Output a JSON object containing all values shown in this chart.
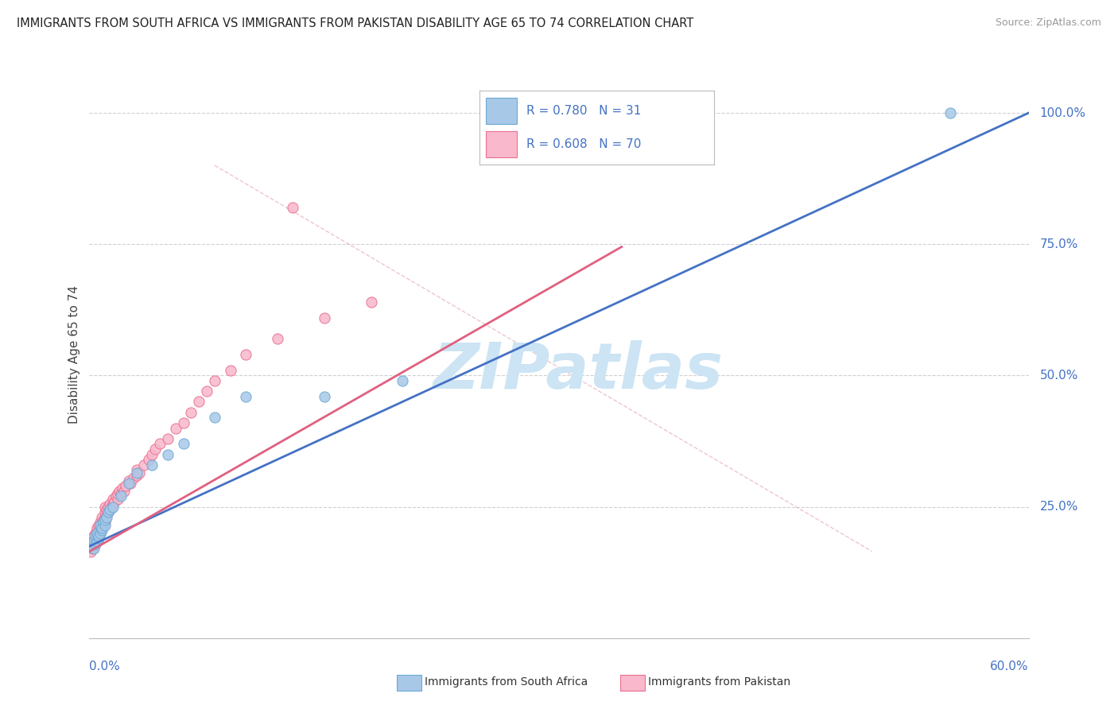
{
  "title": "IMMIGRANTS FROM SOUTH AFRICA VS IMMIGRANTS FROM PAKISTAN DISABILITY AGE 65 TO 74 CORRELATION CHART",
  "source": "Source: ZipAtlas.com",
  "ylabel": "Disability Age 65 to 74",
  "xlim": [
    0.0,
    0.6
  ],
  "ylim": [
    0.0,
    1.08
  ],
  "legend_r1": "R = 0.780",
  "legend_n1": "N = 31",
  "legend_r2": "R = 0.608",
  "legend_n2": "N = 70",
  "color_sa_fill": "#a8c8e8",
  "color_pk_fill": "#f9b8cc",
  "color_sa_edge": "#6aaad4",
  "color_pk_edge": "#e87090",
  "color_sa_line": "#4472c4",
  "color_pk_line": "#e06080",
  "color_text_blue": "#4472c4",
  "watermark_color": "#cce4f4",
  "grid_color": "#d0d0d0",
  "sa_x": [
    0.002,
    0.003,
    0.003,
    0.004,
    0.004,
    0.005,
    0.005,
    0.006,
    0.006,
    0.007,
    0.007,
    0.008,
    0.008,
    0.009,
    0.01,
    0.01,
    0.011,
    0.012,
    0.013,
    0.015,
    0.02,
    0.025,
    0.03,
    0.04,
    0.05,
    0.06,
    0.08,
    0.1,
    0.15,
    0.2,
    0.55
  ],
  "sa_y": [
    0.175,
    0.17,
    0.185,
    0.18,
    0.195,
    0.185,
    0.2,
    0.19,
    0.195,
    0.2,
    0.215,
    0.205,
    0.21,
    0.22,
    0.215,
    0.225,
    0.23,
    0.24,
    0.245,
    0.25,
    0.27,
    0.295,
    0.315,
    0.33,
    0.35,
    0.37,
    0.42,
    0.46,
    0.46,
    0.49,
    1.0
  ],
  "pk_x": [
    0.001,
    0.002,
    0.002,
    0.003,
    0.003,
    0.003,
    0.004,
    0.004,
    0.004,
    0.005,
    0.005,
    0.005,
    0.005,
    0.006,
    0.006,
    0.006,
    0.007,
    0.007,
    0.007,
    0.008,
    0.008,
    0.008,
    0.009,
    0.009,
    0.01,
    0.01,
    0.01,
    0.01,
    0.011,
    0.011,
    0.012,
    0.012,
    0.013,
    0.013,
    0.014,
    0.015,
    0.015,
    0.016,
    0.017,
    0.018,
    0.018,
    0.019,
    0.02,
    0.021,
    0.022,
    0.023,
    0.025,
    0.026,
    0.028,
    0.03,
    0.03,
    0.032,
    0.035,
    0.038,
    0.04,
    0.042,
    0.045,
    0.05,
    0.055,
    0.06,
    0.065,
    0.07,
    0.075,
    0.08,
    0.09,
    0.1,
    0.12,
    0.15,
    0.18,
    0.13
  ],
  "pk_y": [
    0.165,
    0.17,
    0.18,
    0.175,
    0.185,
    0.195,
    0.18,
    0.19,
    0.2,
    0.185,
    0.195,
    0.205,
    0.21,
    0.195,
    0.205,
    0.215,
    0.2,
    0.21,
    0.22,
    0.21,
    0.22,
    0.23,
    0.215,
    0.225,
    0.22,
    0.23,
    0.24,
    0.25,
    0.235,
    0.245,
    0.24,
    0.25,
    0.245,
    0.255,
    0.25,
    0.255,
    0.265,
    0.26,
    0.27,
    0.265,
    0.275,
    0.28,
    0.275,
    0.285,
    0.28,
    0.29,
    0.3,
    0.295,
    0.305,
    0.31,
    0.32,
    0.315,
    0.33,
    0.34,
    0.35,
    0.36,
    0.37,
    0.38,
    0.4,
    0.41,
    0.43,
    0.45,
    0.47,
    0.49,
    0.51,
    0.54,
    0.57,
    0.61,
    0.64,
    0.82
  ],
  "sa_line_x": [
    0.0,
    0.6
  ],
  "sa_line_y": [
    0.175,
    1.0
  ],
  "pk_line_x": [
    0.0,
    0.34
  ],
  "pk_line_y": [
    0.165,
    0.745
  ],
  "diag_line_x": [
    0.08,
    0.5
  ],
  "diag_line_y": [
    0.9,
    0.165
  ]
}
